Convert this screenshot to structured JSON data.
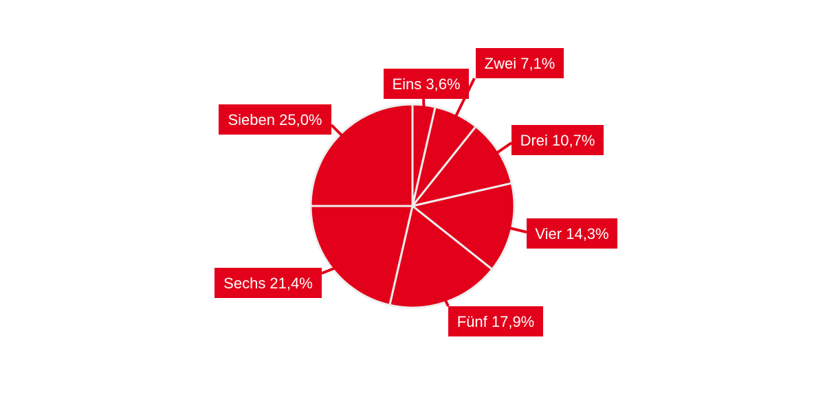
{
  "chart_data": {
    "type": "pie",
    "title": "",
    "colors": {
      "slice": "#e2001a",
      "border": "#eeeeee",
      "label_bg": "#e2001a",
      "label_text": "#ffffff"
    },
    "slices": [
      {
        "name": "Eins",
        "value": 3.6,
        "label": "Eins 3,6%"
      },
      {
        "name": "Zwei",
        "value": 7.1,
        "label": "Zwei 7,1%"
      },
      {
        "name": "Drei",
        "value": 10.7,
        "label": "Drei 10,7%"
      },
      {
        "name": "Vier",
        "value": 14.3,
        "label": "Vier 14,3%"
      },
      {
        "name": "Fünf",
        "value": 17.9,
        "label": "Fünf 17,9%"
      },
      {
        "name": "Sechs",
        "value": 21.4,
        "label": "Sechs 21,4%"
      },
      {
        "name": "Sieben",
        "value": 25.0,
        "label": "Sieben 25,0%"
      }
    ]
  }
}
